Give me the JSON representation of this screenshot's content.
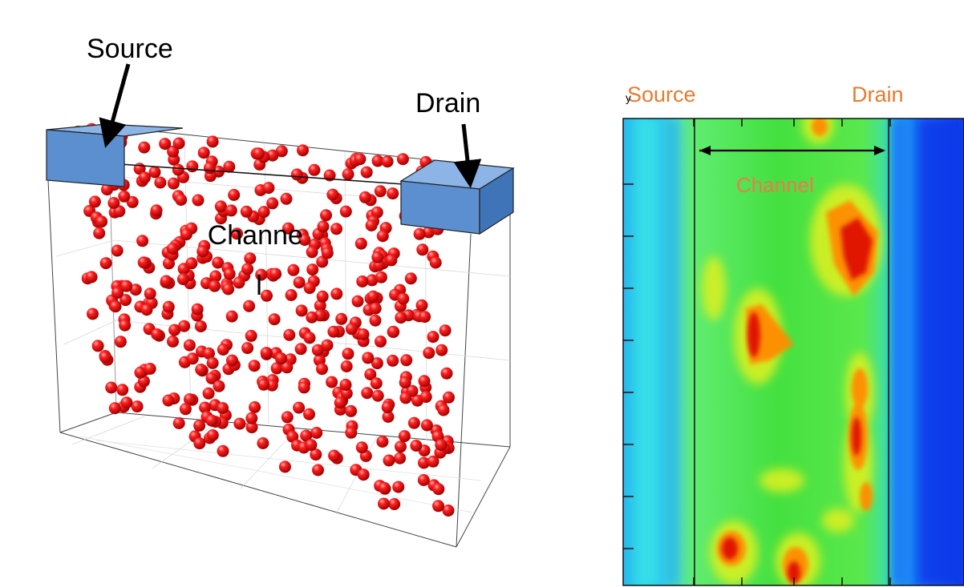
{
  "left_figure": {
    "source_label": "Source",
    "drain_label": "Drain",
    "channel_label": "Channe\nl",
    "colors": {
      "electrode": "#5b8fcf",
      "electrode_side": "#3f74b8",
      "dopant": "#e50000",
      "dopant_highlight": "#ff8a8a"
    },
    "dopant_count": 430
  },
  "right_figure": {
    "source_label": "Source",
    "drain_label": "Drain",
    "channel_label": "Channel",
    "axis_label": "y",
    "colors": {
      "label": "#e87a2e",
      "channel_label": "#f0784a",
      "map_low": "#0040ff",
      "map_mid": "#26e626",
      "map_high": "#e81e00"
    }
  }
}
